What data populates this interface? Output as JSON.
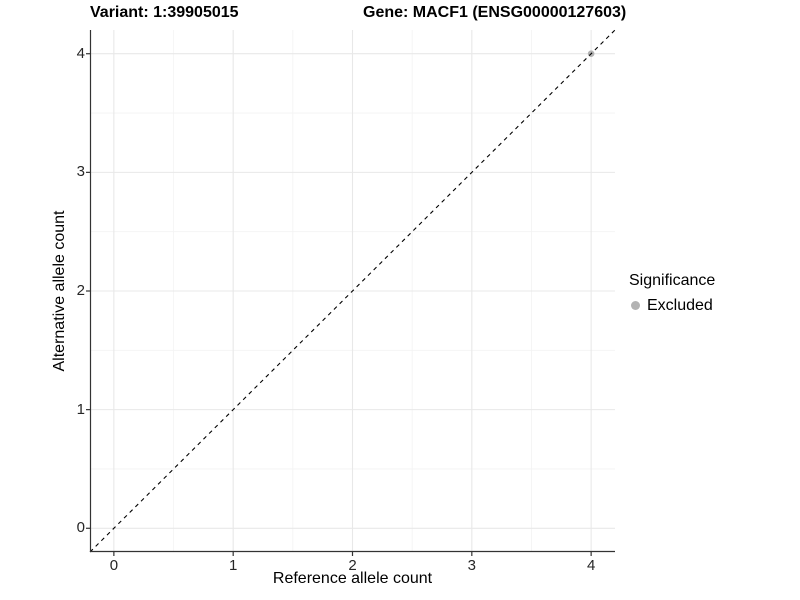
{
  "titles": {
    "variant": "Variant: 1:39905015",
    "gene": "Gene: MACF1 (ENSG00000127603)"
  },
  "axes": {
    "x_label": "Reference allele count",
    "y_label": "Alternative allele count"
  },
  "legend": {
    "title": "Significance",
    "entries": [
      {
        "label": "Excluded",
        "color": "#b3b3b3"
      }
    ]
  },
  "chart_data": {
    "type": "scatter",
    "title_left": "Variant: 1:39905015",
    "title_right": "Gene: MACF1 (ENSG00000127603)",
    "xlabel": "Reference allele count",
    "ylabel": "Alternative allele count",
    "xlim": [
      -0.2,
      4.2
    ],
    "ylim": [
      -0.2,
      4.2
    ],
    "xticks": [
      0,
      1,
      2,
      3,
      4
    ],
    "yticks": [
      0,
      1,
      2,
      3,
      4
    ],
    "minor_ticks": [
      0.5,
      1.5,
      2.5,
      3.5
    ],
    "grid": "major+minor",
    "legend_position": "right",
    "series": [
      {
        "name": "Excluded",
        "color": "#b3b3b3",
        "points": [
          {
            "x": 4,
            "y": 4
          }
        ]
      }
    ],
    "identity_line": {
      "style": "dashed",
      "slope": 1,
      "intercept": 0
    }
  },
  "colors": {
    "background": "#ffffff",
    "grid_major": "#e8e8e8",
    "grid_minor": "#f3f3f3",
    "axis_line": "#333333",
    "tick_mark": "#333333",
    "tick_text": "#262626",
    "title_text": "#000000",
    "dashed_line": "#000000",
    "point_excluded": "#b3b3b3"
  }
}
